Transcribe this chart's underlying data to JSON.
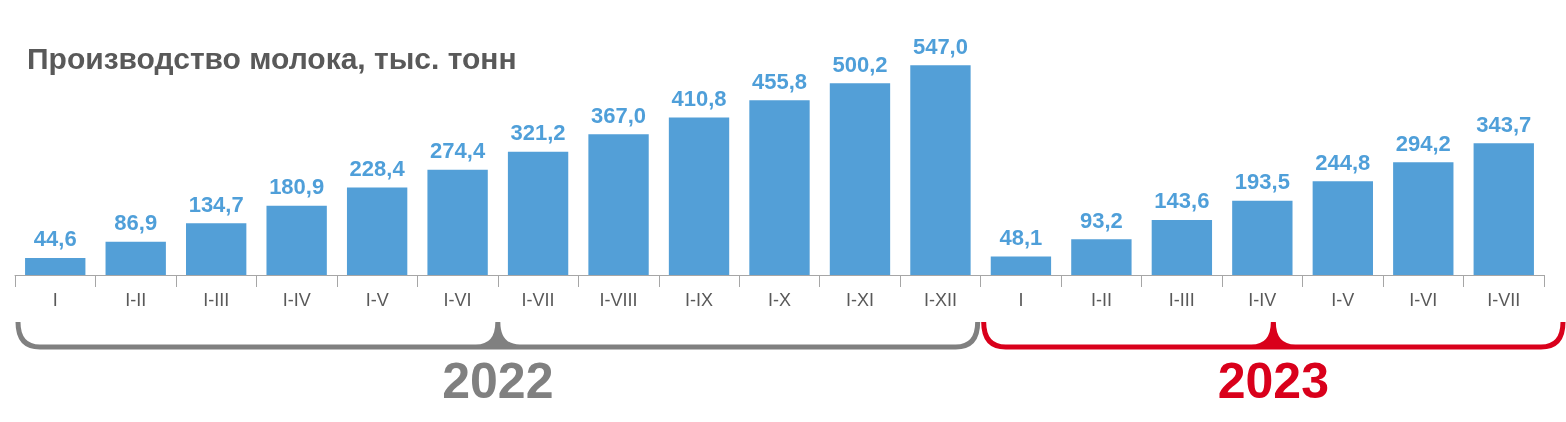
{
  "chart_data": {
    "type": "bar",
    "title": "Производство молока, тыс. тонн",
    "categories": [
      "I",
      "I-II",
      "I-III",
      "I-IV",
      "I-V",
      "I-VI",
      "I-VII",
      "I-VIII",
      "I-IX",
      "I-X",
      "I-XI",
      "I-XII",
      "I",
      "I-II",
      "I-III",
      "I-IV",
      "I-V",
      "I-VI",
      "I-VII"
    ],
    "values": [
      44.6,
      86.9,
      134.7,
      180.9,
      228.4,
      274.4,
      321.2,
      367.0,
      410.8,
      455.8,
      500.2,
      547.0,
      48.1,
      93.2,
      143.6,
      193.5,
      244.8,
      294.2,
      343.7
    ],
    "color": "#539fd7",
    "value_labels": [
      "44,6",
      "86,9",
      "134,7",
      "180,9",
      "228,4",
      "274,4",
      "321,2",
      "367,0",
      "410,8",
      "455,8",
      "500,2",
      "547,0",
      "48,1",
      "93,2",
      "143,6",
      "193,5",
      "244,8",
      "294,2",
      "343,7"
    ],
    "tick_labels": "x",
    "grid": false,
    "annotations": [
      "2022",
      "2023"
    ]
  }
}
